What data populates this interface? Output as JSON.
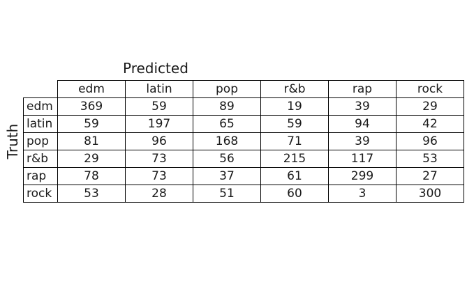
{
  "chart_data": {
    "type": "table",
    "col_axis_label": "Predicted",
    "row_axis_label": "Truth",
    "col_labels": [
      "edm",
      "latin",
      "pop",
      "r&b",
      "rap",
      "rock"
    ],
    "row_labels": [
      "edm",
      "latin",
      "pop",
      "r&b",
      "rap",
      "rock"
    ],
    "matrix": [
      [
        369,
        59,
        89,
        19,
        39,
        29
      ],
      [
        59,
        197,
        65,
        59,
        94,
        42
      ],
      [
        81,
        96,
        168,
        71,
        39,
        96
      ],
      [
        29,
        73,
        56,
        215,
        117,
        53
      ],
      [
        78,
        73,
        37,
        61,
        299,
        27
      ],
      [
        53,
        28,
        51,
        60,
        3,
        300
      ]
    ]
  }
}
